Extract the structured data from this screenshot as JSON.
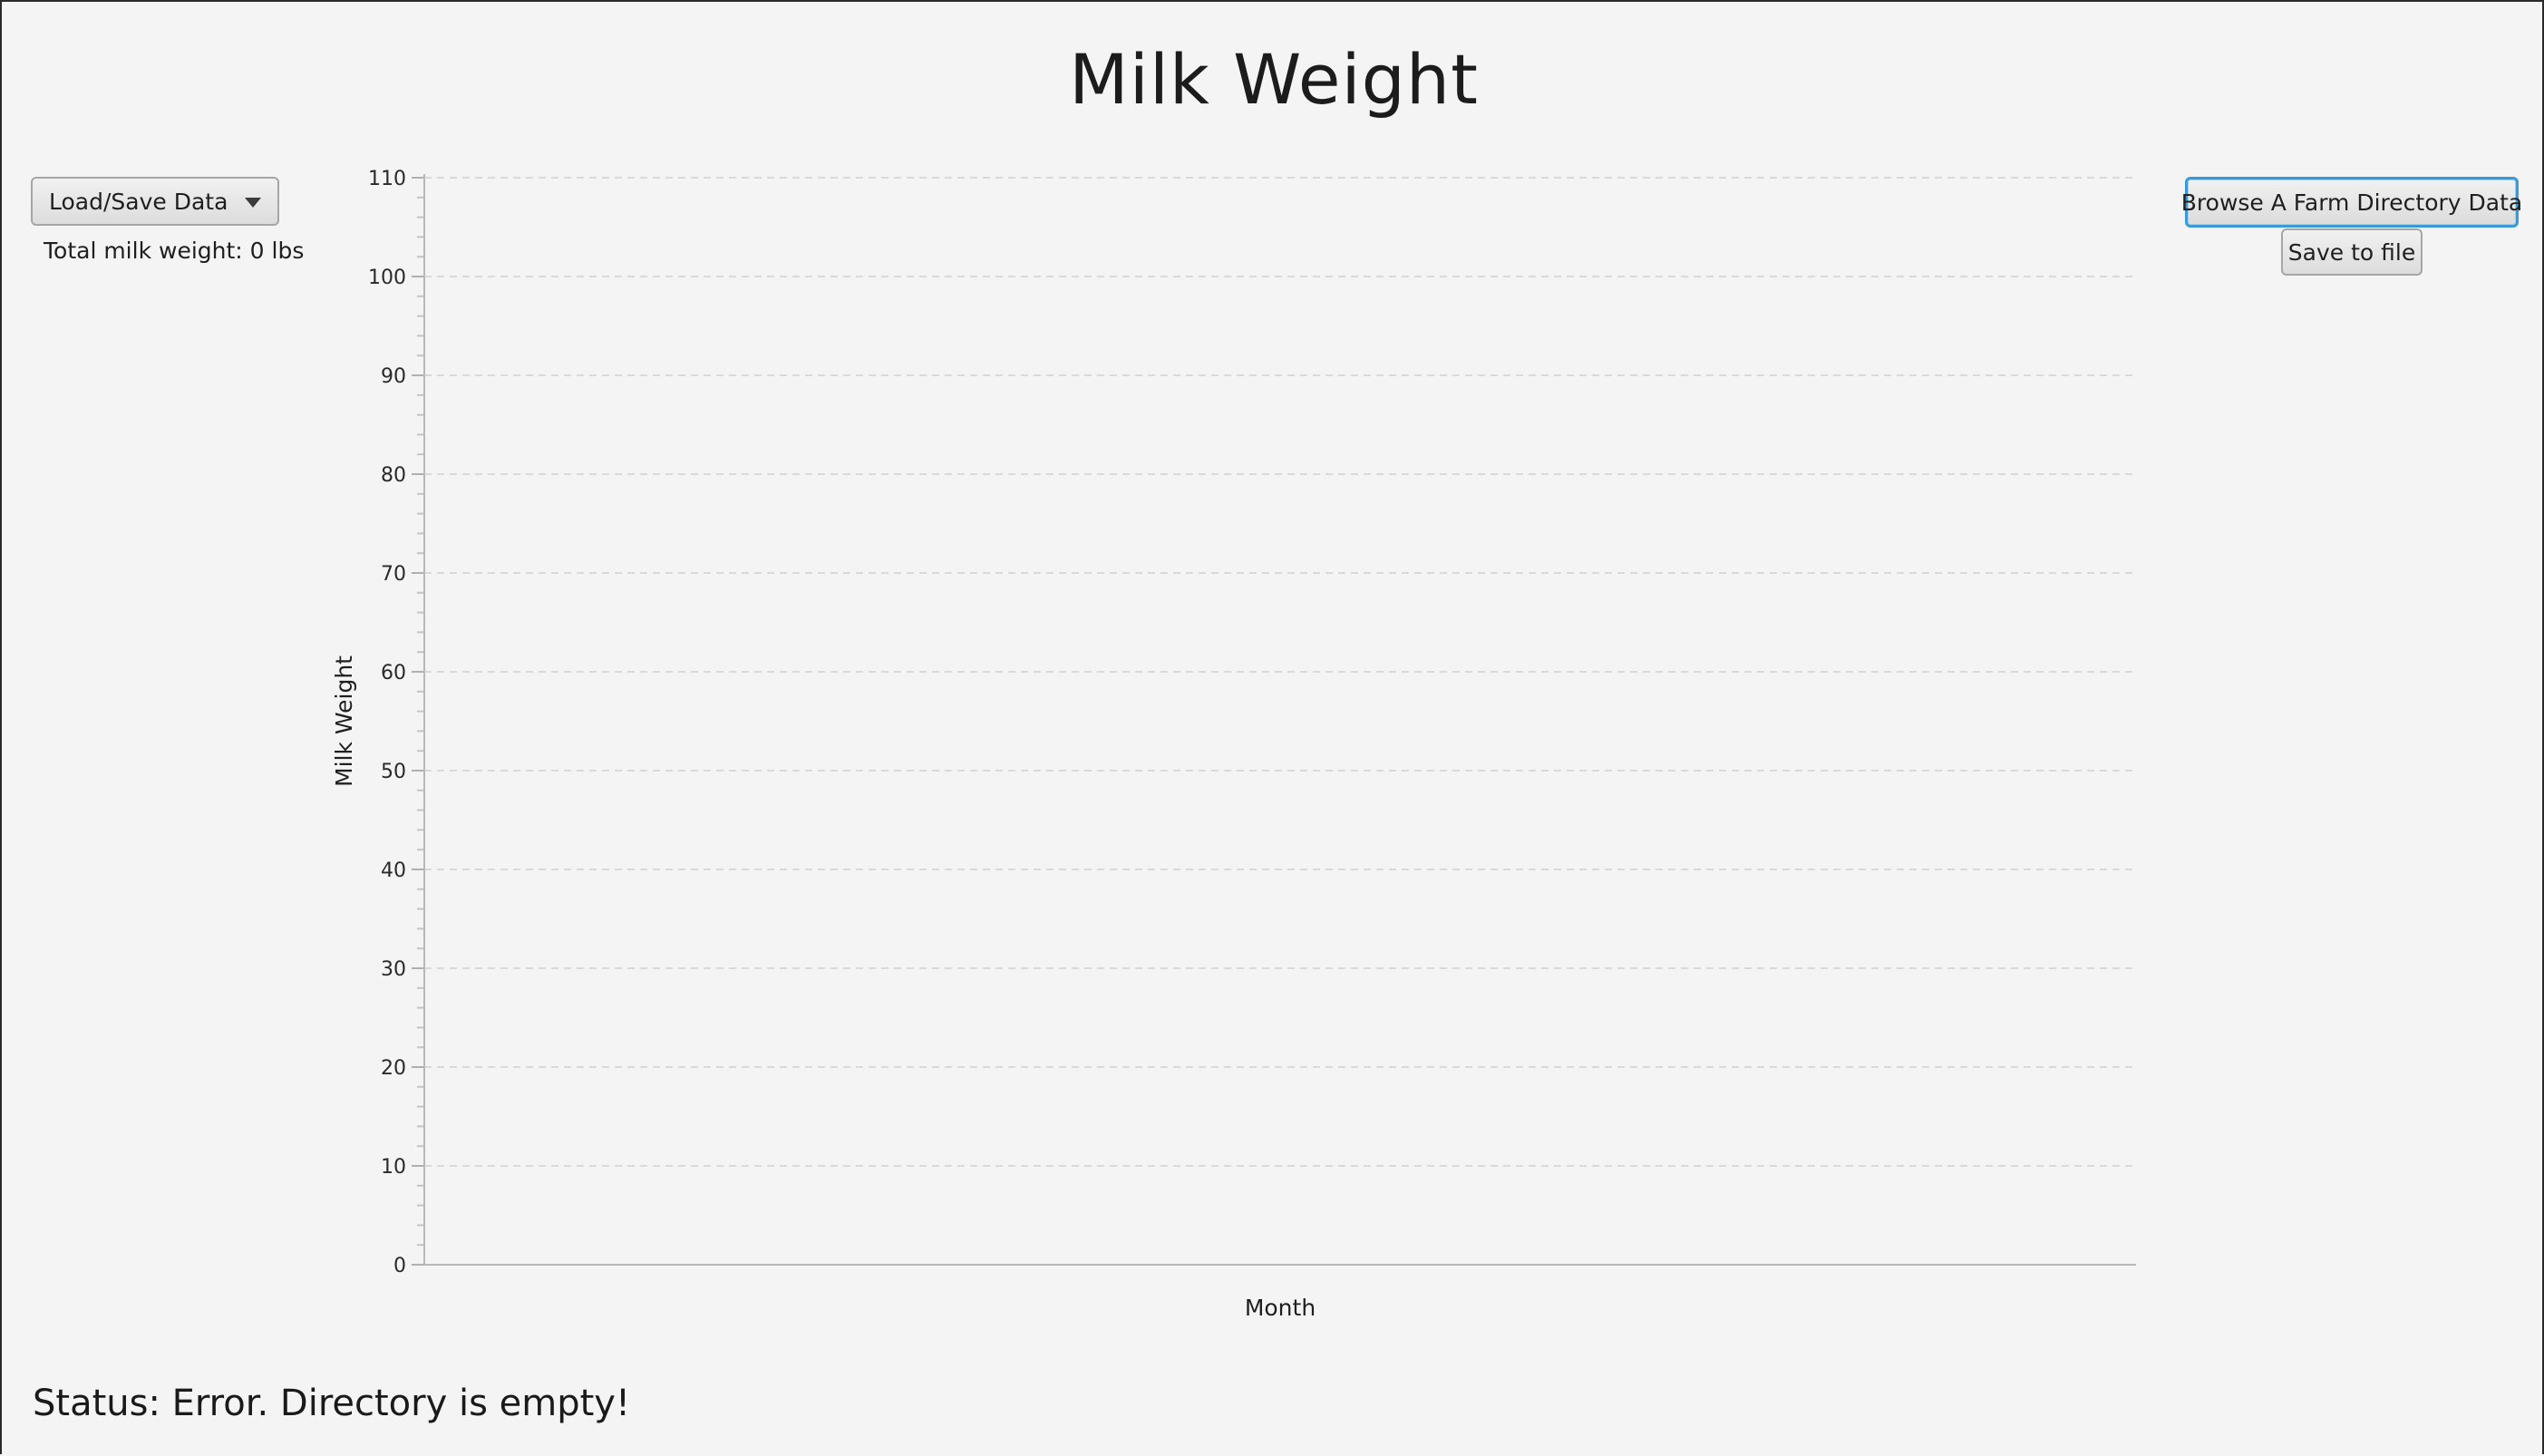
{
  "app": {
    "title": "Milk Weight"
  },
  "controls": {
    "menu_label": "Load/Save Data",
    "total_label": "Total milk weight: 0 lbs",
    "browse_label": "Browse A Farm Directory Data",
    "save_label": "Save to file"
  },
  "status": {
    "text": "Status: Error. Directory is empty!"
  },
  "icons": {
    "menu_caret": "chevron-down-icon"
  },
  "colors": {
    "background": "#f4f4f4",
    "focus_border": "#3a9ad6",
    "gridline": "#d9d9d9"
  },
  "chart_data": {
    "type": "line",
    "title": "",
    "xlabel": "Month",
    "ylabel": "Milk Weight",
    "categories": [],
    "series": [],
    "ylim": [
      0,
      110
    ],
    "yticks": [
      "0",
      "10",
      "20",
      "30",
      "40",
      "50",
      "60",
      "70",
      "80",
      "90",
      "100",
      "110"
    ],
    "grid": true,
    "legend": "none"
  }
}
